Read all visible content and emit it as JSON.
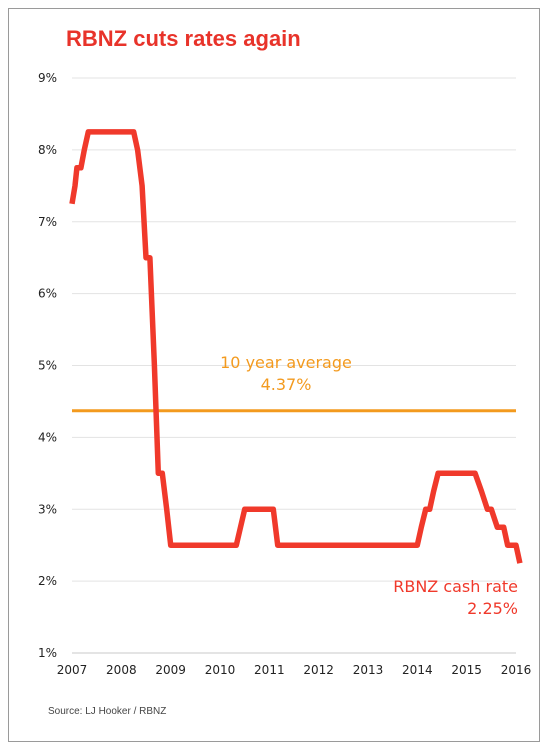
{
  "chart_data": {
    "type": "line",
    "title": "RBNZ cuts rates again",
    "source": "Source: LJ Hooker  / RBNZ",
    "xlabel": "",
    "ylabel": "",
    "ylim": [
      1,
      9
    ],
    "xlim": [
      2007,
      2016
    ],
    "y_ticks": [
      "1%",
      "2%",
      "3%",
      "4%",
      "5%",
      "6%",
      "7%",
      "8%",
      "9%"
    ],
    "x_ticks": [
      "2007",
      "2008",
      "2009",
      "2010",
      "2011",
      "2012",
      "2013",
      "2014",
      "2015",
      "2016"
    ],
    "grid": true,
    "colors": {
      "rate": "#f0392b",
      "average": "#f39a1e",
      "title": "#e8332a",
      "grid": "#e3e3e3"
    },
    "series": [
      {
        "name": "RBNZ cash rate",
        "x": [
          2007.0,
          2007.06,
          2007.1,
          2007.18,
          2007.25,
          2007.33,
          2007.42,
          2008.0,
          2008.25,
          2008.33,
          2008.42,
          2008.5,
          2008.58,
          2008.67,
          2008.75,
          2008.83,
          2008.92,
          2009.0,
          2009.08,
          2009.17,
          2009.25,
          2010.0,
          2010.17,
          2010.33,
          2010.5,
          2010.67,
          2010.83,
          2011.0,
          2011.08,
          2011.17,
          2011.25,
          2011.5,
          2012.0,
          2013.0,
          2013.5,
          2013.9,
          2014.0,
          2014.08,
          2014.17,
          2014.25,
          2014.33,
          2014.42,
          2014.5,
          2014.58,
          2015.0,
          2015.17,
          2015.3,
          2015.42,
          2015.5,
          2015.62,
          2015.75,
          2015.83,
          2015.92,
          2016.0,
          2016.08
        ],
        "y": [
          7.25,
          7.5,
          7.75,
          7.75,
          8.0,
          8.25,
          8.25,
          8.25,
          8.25,
          8.0,
          7.5,
          6.5,
          6.5,
          5.0,
          3.5,
          3.5,
          3.0,
          2.5,
          2.5,
          2.5,
          2.5,
          2.5,
          2.5,
          2.5,
          3.0,
          3.0,
          3.0,
          3.0,
          3.0,
          2.5,
          2.5,
          2.5,
          2.5,
          2.5,
          2.5,
          2.5,
          2.5,
          2.75,
          3.0,
          3.0,
          3.25,
          3.5,
          3.5,
          3.5,
          3.5,
          3.5,
          3.25,
          3.0,
          3.0,
          2.75,
          2.75,
          2.5,
          2.5,
          2.5,
          2.25
        ]
      }
    ],
    "reference_line": {
      "label": "10 year average",
      "value": 4.37,
      "value_label": "4.37%"
    },
    "end_label": {
      "label": "RBNZ cash rate",
      "value_label": "2.25%"
    }
  }
}
